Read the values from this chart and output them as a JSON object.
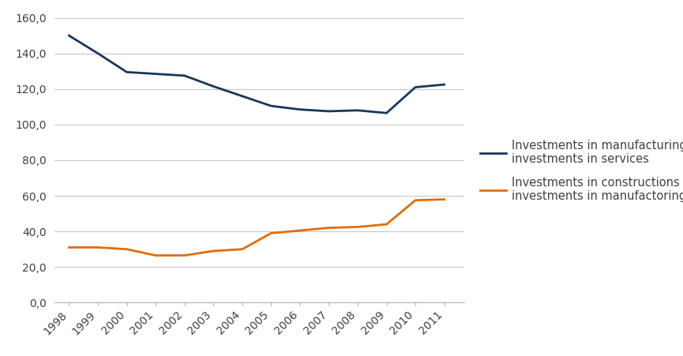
{
  "years": [
    1998,
    1999,
    2000,
    2001,
    2002,
    2003,
    2004,
    2005,
    2006,
    2007,
    2008,
    2009,
    2010,
    2011
  ],
  "blue_values": [
    150.0,
    140.0,
    129.5,
    128.5,
    127.5,
    121.5,
    116.0,
    110.5,
    108.5,
    107.5,
    108.0,
    106.5,
    121.0,
    122.5
  ],
  "orange_values": [
    31.0,
    31.0,
    30.0,
    26.5,
    26.5,
    29.0,
    30.0,
    39.0,
    40.5,
    42.0,
    42.5,
    44.0,
    57.5,
    58.0
  ],
  "blue_color": "#17375E",
  "orange_color": "#E36C09",
  "legend_blue": "Investments in manufacturing /\ninvestments in services",
  "legend_orange": "Investments in constructions /\ninvestments in manufactoring",
  "ylim_min": 0,
  "ylim_max": 160,
  "yticks": [
    0,
    20,
    40,
    60,
    80,
    100,
    120,
    140,
    160
  ],
  "ytick_labels": [
    "0,0",
    "20,0",
    "40,0",
    "60,0",
    "80,0",
    "100,0",
    "120,0",
    "140,0",
    "160,0"
  ],
  "background_color": "#FFFFFF",
  "grid_color": "#C8C8C8",
  "text_color": "#404040",
  "tick_fontsize": 10,
  "legend_fontsize": 10.5
}
